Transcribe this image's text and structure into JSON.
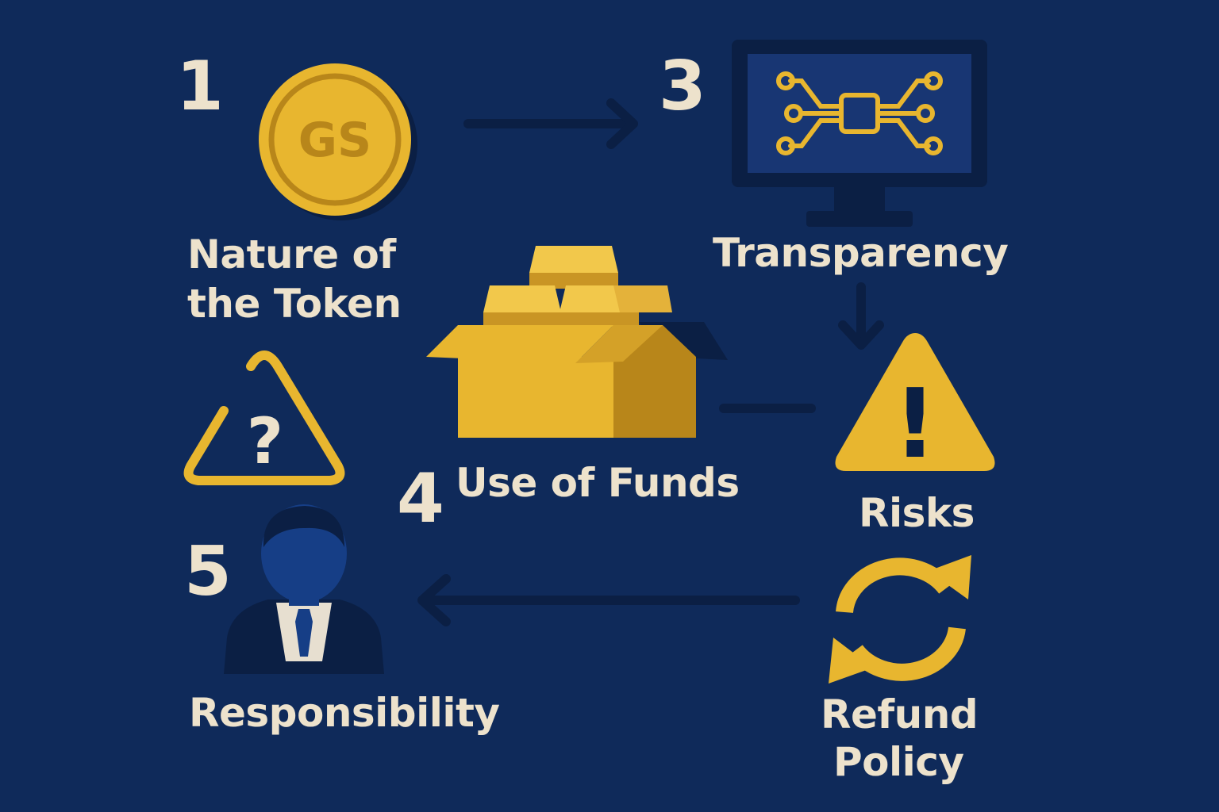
{
  "steps": [
    {
      "number": "1",
      "label_line1": "Nature of",
      "label_line2": "the Token",
      "icon": "gs-coin-icon",
      "coin_text": "GS"
    },
    {
      "number": "3",
      "label": "Transparency",
      "icon": "monitor-network-icon"
    },
    {
      "number": "4",
      "label": "Use of Funds",
      "icon": "gold-box-icon"
    },
    {
      "number": "5",
      "label": "Responsibility",
      "icon": "businessman-icon"
    }
  ],
  "items": [
    {
      "label": "Risks",
      "icon": "warning-icon",
      "mark": "!"
    },
    {
      "label_line1": "Refund",
      "label_line2": "Policy",
      "icon": "refresh-icon"
    },
    {
      "icon": "question-triangle-icon",
      "mark": "?"
    }
  ],
  "colors": {
    "background": "#0f2a5a",
    "gold": "#e8b62f",
    "gold_dark": "#b8861a",
    "text": "#ede2cc",
    "arrow": "#0b1f44"
  }
}
